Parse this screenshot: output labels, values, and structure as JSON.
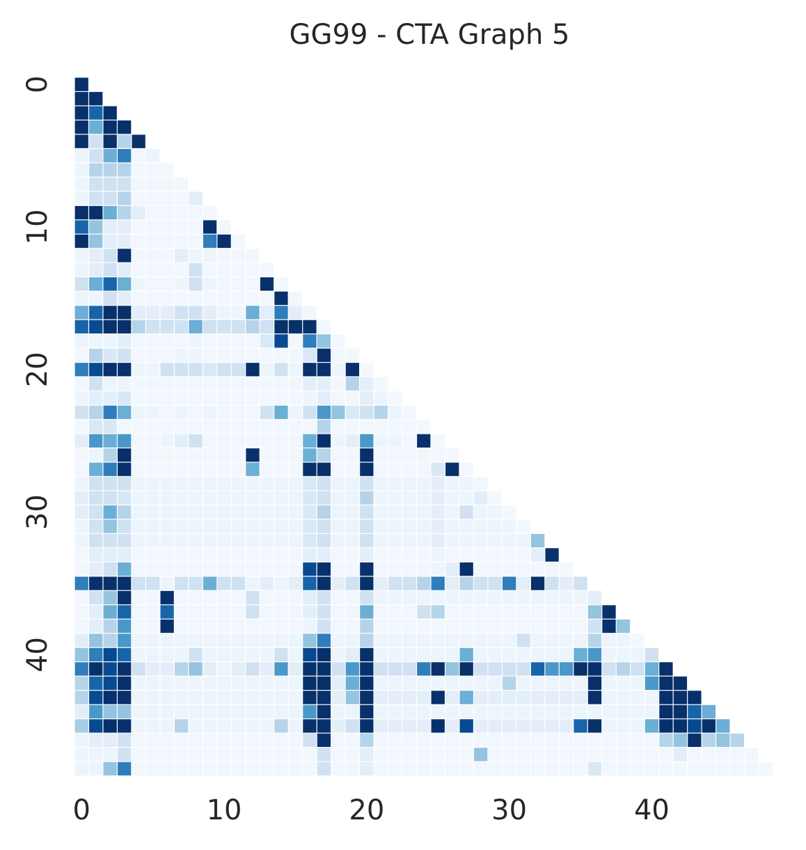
{
  "chart_data": {
    "type": "heatmap",
    "title": "GG99 - CTA Graph 5",
    "cmap": "Blues",
    "clim": [
      0,
      1
    ],
    "xticks": [
      0,
      10,
      20,
      30,
      40
    ],
    "yticks": [
      0,
      10,
      20,
      30,
      40
    ],
    "values": [
      [
        1
      ],
      [
        1,
        1
      ],
      [
        1,
        0.8,
        1
      ],
      [
        1,
        0.5,
        1,
        1
      ],
      [
        1,
        0.2,
        1,
        0.3,
        1
      ],
      [
        0.05,
        0.2,
        0.5,
        0.7,
        0.03,
        0.05
      ],
      [
        0.05,
        0.3,
        0.3,
        0.3,
        0.03,
        0.03,
        0.03
      ],
      [
        0.05,
        0.2,
        0.2,
        0.2,
        0.03,
        0.03,
        0.03,
        0.03
      ],
      [
        0.05,
        0.2,
        0.2,
        0.3,
        0.03,
        0.03,
        0.03,
        0.03,
        0.1
      ],
      [
        1,
        1,
        0.5,
        0.3,
        0.1,
        0.03,
        0.03,
        0.03,
        0.03,
        0.03
      ],
      [
        0.8,
        0.4,
        0.1,
        0.1,
        0.03,
        0.03,
        0.03,
        0.03,
        0.03,
        1,
        0.03
      ],
      [
        1,
        0.4,
        0.1,
        0.1,
        0.03,
        0.03,
        0.03,
        0.03,
        0.03,
        0.7,
        1,
        0.03
      ],
      [
        0.05,
        0.1,
        0.2,
        1,
        0.03,
        0.03,
        0.03,
        0.1,
        0.05,
        0.05,
        0.03,
        0.03,
        0.03
      ],
      [
        0.05,
        0.1,
        0.2,
        0.1,
        0.03,
        0.03,
        0.03,
        0.03,
        0.2,
        0.03,
        0.03,
        0.03,
        0.03,
        0.03
      ],
      [
        0.2,
        0.5,
        0.8,
        0.5,
        0.05,
        0.03,
        0.03,
        0.05,
        0.2,
        0.05,
        0.03,
        0.03,
        0.03,
        1,
        0.03
      ],
      [
        0.05,
        0.05,
        0.2,
        0.1,
        0.03,
        0.03,
        0.03,
        0.03,
        0.03,
        0.03,
        0.03,
        0.03,
        0.03,
        0.03,
        1,
        0.03
      ],
      [
        0.5,
        0.8,
        1,
        1,
        0.1,
        0.1,
        0.1,
        0.2,
        0.2,
        0.1,
        0.05,
        0.05,
        0.5,
        0.1,
        0.7,
        0.1,
        0.03
      ],
      [
        0.8,
        0.9,
        1,
        1,
        0.3,
        0.2,
        0.2,
        0.2,
        0.5,
        0.2,
        0.2,
        0.2,
        0.3,
        0.2,
        1,
        1,
        1,
        0.02
      ],
      [
        0.05,
        0.05,
        0.05,
        0.1,
        0.03,
        0.03,
        0.03,
        0.03,
        0.05,
        0.03,
        0.03,
        0.03,
        0.03,
        0.15,
        0.9,
        0.03,
        0.7,
        0.4,
        0.02
      ],
      [
        0.03,
        0.3,
        0.15,
        0.2,
        0.03,
        0.03,
        0.03,
        0.05,
        0.05,
        0.03,
        0.03,
        0.03,
        0.03,
        0.03,
        0.03,
        0.03,
        0.15,
        1,
        0.03,
        0.02
      ],
      [
        0.7,
        0.9,
        1,
        1,
        0.05,
        0.05,
        0.2,
        0.2,
        0.2,
        0.15,
        0.2,
        0.2,
        1,
        0.05,
        0.2,
        0.05,
        1,
        1,
        0.05,
        1,
        0.02
      ],
      [
        0.03,
        0.2,
        0.05,
        0.05,
        0.03,
        0.03,
        0.03,
        0.03,
        0.03,
        0.03,
        0.03,
        0.03,
        0.03,
        0.03,
        0.03,
        0.03,
        0.1,
        0.1,
        0.03,
        0.3,
        0.1,
        0.02
      ],
      [
        0.05,
        0.1,
        0.1,
        0.15,
        0.03,
        0.03,
        0.03,
        0.03,
        0.03,
        0.03,
        0.03,
        0.03,
        0.03,
        0.03,
        0.03,
        0.03,
        0.05,
        0.1,
        0.03,
        0.03,
        0.1,
        0.05,
        0.02
      ],
      [
        0.2,
        0.3,
        0.7,
        0.5,
        0.05,
        0.05,
        0.03,
        0.05,
        0.03,
        0.05,
        0.03,
        0.03,
        0.03,
        0.2,
        0.5,
        0.05,
        0.2,
        0.6,
        0.4,
        0.15,
        0.2,
        0.3,
        0.05,
        0.02
      ],
      [
        0.03,
        0.15,
        0.15,
        0.03,
        0.03,
        0.03,
        0.03,
        0.03,
        0.03,
        0.03,
        0.03,
        0.03,
        0.03,
        0.03,
        0.03,
        0.03,
        0.03,
        0.3,
        0.03,
        0.03,
        0.03,
        0.03,
        0.03,
        0.03,
        0.02
      ],
      [
        0.1,
        0.6,
        0.5,
        0.6,
        0.03,
        0.03,
        0.05,
        0.1,
        0.2,
        0.03,
        0.03,
        0.03,
        0.03,
        0.03,
        0.03,
        0.03,
        0.5,
        1,
        0.05,
        0.1,
        0.6,
        0.05,
        0.05,
        0.03,
        1,
        0.02
      ],
      [
        0.03,
        0.05,
        0.3,
        1,
        0.03,
        0.03,
        0.03,
        0.03,
        0.03,
        0.03,
        0.03,
        0.03,
        1,
        0.03,
        0.03,
        0.03,
        0.5,
        0.3,
        0.03,
        0.03,
        1,
        0.03,
        0.03,
        0.03,
        0.03,
        0.03,
        0.02
      ],
      [
        0.03,
        0.5,
        0.7,
        1,
        0.03,
        0.03,
        0.03,
        0.03,
        0.03,
        0.03,
        0.03,
        0.03,
        0.5,
        0.03,
        0.03,
        0.03,
        1,
        1,
        0.03,
        0.03,
        1,
        0.03,
        0.03,
        0.03,
        0.03,
        0.15,
        1,
        0.02
      ],
      [
        0.05,
        0.2,
        0.2,
        0.2,
        0.05,
        0.05,
        0.05,
        0.05,
        0.05,
        0.05,
        0.05,
        0.05,
        0.05,
        0.05,
        0.05,
        0.05,
        0.15,
        0.2,
        0.05,
        0.05,
        0.2,
        0.05,
        0.05,
        0.05,
        0.05,
        0.1,
        0.05,
        0.05,
        0.02
      ],
      [
        0.1,
        0.2,
        0.2,
        0.15,
        0.05,
        0.05,
        0.05,
        0.05,
        0.05,
        0.05,
        0.05,
        0.05,
        0.05,
        0.05,
        0.05,
        0.05,
        0.15,
        0.2,
        0.05,
        0.05,
        0.3,
        0.05,
        0.05,
        0.05,
        0.05,
        0.1,
        0.05,
        0.05,
        0.1,
        0.02
      ],
      [
        0.1,
        0.2,
        0.5,
        0.3,
        0.05,
        0.05,
        0.05,
        0.05,
        0.05,
        0.05,
        0.05,
        0.05,
        0.05,
        0.05,
        0.05,
        0.05,
        0.15,
        0.3,
        0.05,
        0.05,
        0.2,
        0.05,
        0.05,
        0.05,
        0.05,
        0.1,
        0.05,
        0.2,
        0.05,
        0.05,
        0.02
      ],
      [
        0.05,
        0.2,
        0.4,
        0.2,
        0.05,
        0.05,
        0.05,
        0.05,
        0.05,
        0.05,
        0.05,
        0.05,
        0.05,
        0.05,
        0.05,
        0.05,
        0.15,
        0.2,
        0.05,
        0.05,
        0.2,
        0.05,
        0.05,
        0.05,
        0.05,
        0.1,
        0.05,
        0.05,
        0.05,
        0.05,
        0.05,
        0.02
      ],
      [
        0.05,
        0.2,
        0.2,
        0.2,
        0.05,
        0.05,
        0.05,
        0.05,
        0.05,
        0.05,
        0.05,
        0.05,
        0.05,
        0.05,
        0.05,
        0.05,
        0.15,
        0.2,
        0.05,
        0.05,
        0.2,
        0.05,
        0.05,
        0.05,
        0.05,
        0.1,
        0.05,
        0.05,
        0.05,
        0.05,
        0.05,
        0.05,
        0.4
      ],
      [
        0.03,
        0.1,
        0.1,
        0.1,
        0.03,
        0.03,
        0.03,
        0.03,
        0.03,
        0.03,
        0.03,
        0.03,
        0.03,
        0.03,
        0.03,
        0.03,
        0.1,
        0.1,
        0.03,
        0.03,
        0.1,
        0.03,
        0.03,
        0.03,
        0.03,
        0.05,
        0.03,
        0.03,
        0.03,
        0.03,
        0.03,
        0.03,
        0.1,
        1
      ],
      [
        0.03,
        0.1,
        0.2,
        0.5,
        0.03,
        0.03,
        0.03,
        0.03,
        0.03,
        0.03,
        0.03,
        0.03,
        0.03,
        0.03,
        0.03,
        0.03,
        0.9,
        1,
        0.03,
        0.03,
        1,
        0.03,
        0.03,
        0.03,
        0.03,
        0.05,
        0.1,
        1,
        0.03,
        0.03,
        0.03,
        0.03,
        0.03,
        0.03,
        0.02
      ],
      [
        0.7,
        1,
        1,
        1,
        0.2,
        0.2,
        0.05,
        0.2,
        0.2,
        0.5,
        0.2,
        0.2,
        0.05,
        0.1,
        0.05,
        0.1,
        0.8,
        1,
        0.1,
        0.2,
        1,
        0.1,
        0.2,
        0.2,
        0.3,
        0.7,
        0.1,
        0.3,
        0.2,
        0.2,
        0.7,
        0.1,
        1,
        0.2,
        0.1,
        0.2
      ],
      [
        0.03,
        0.2,
        0.4,
        1,
        0.03,
        0.03,
        1,
        0.03,
        0.03,
        0.03,
        0.03,
        0.03,
        0.2,
        0.03,
        0.03,
        0.03,
        0.1,
        0.2,
        0.03,
        0.03,
        0.2,
        0.05,
        0.05,
        0.05,
        0.05,
        0.05,
        0.05,
        0.05,
        0.05,
        0.05,
        0.05,
        0.05,
        0.05,
        0.05,
        0.05,
        0.05,
        0.1
      ],
      [
        0.03,
        0.1,
        0.5,
        0.8,
        0.03,
        0.03,
        0.8,
        0.03,
        0.03,
        0.03,
        0.03,
        0.03,
        0.2,
        0.03,
        0.03,
        0.03,
        0.1,
        0.2,
        0.03,
        0.03,
        0.5,
        0.03,
        0.03,
        0.03,
        0.2,
        0.3,
        0.03,
        0.03,
        0.03,
        0.03,
        0.03,
        0.03,
        0.03,
        0.03,
        0.03,
        0.03,
        0.4,
        1
      ],
      [
        0.03,
        0.1,
        0.3,
        0.6,
        0.03,
        0.03,
        1,
        0.03,
        0.03,
        0.03,
        0.03,
        0.03,
        0.03,
        0.03,
        0.03,
        0.03,
        0.05,
        0.2,
        0.03,
        0.03,
        0.3,
        0.03,
        0.03,
        0.03,
        0.03,
        0.03,
        0.03,
        0.03,
        0.03,
        0.03,
        0.03,
        0.03,
        0.03,
        0.03,
        0.03,
        0.03,
        0.2,
        1,
        0.4
      ],
      [
        0.1,
        0.4,
        0.3,
        0.6,
        0.05,
        0.05,
        0.05,
        0.05,
        0.05,
        0.05,
        0.05,
        0.05,
        0.05,
        0.05,
        0.05,
        0.05,
        0.4,
        0.7,
        0.05,
        0.05,
        0.3,
        0.05,
        0.05,
        0.05,
        0.05,
        0.05,
        0.05,
        0.05,
        0.05,
        0.05,
        0.05,
        0.2,
        0.05,
        0.05,
        0.05,
        0.05,
        0.3,
        0.05,
        0.05,
        0.02
      ],
      [
        0.4,
        0.7,
        0.9,
        0.8,
        0.05,
        0.05,
        0.05,
        0.05,
        0.2,
        0.05,
        0.05,
        0.05,
        0.05,
        0.05,
        0.2,
        0.05,
        0.9,
        1,
        0.05,
        0.1,
        1,
        0.05,
        0.05,
        0.05,
        0.05,
        0.05,
        0.05,
        0.5,
        0.05,
        0.05,
        0.05,
        0.05,
        0.05,
        0.05,
        0.05,
        0.5,
        0.6,
        0.05,
        0.05,
        0.05,
        0.2
      ],
      [
        0.7,
        1,
        0.9,
        1,
        0.2,
        0.1,
        0.1,
        0.3,
        0.4,
        0.1,
        0.05,
        0.1,
        0.2,
        0.1,
        0.6,
        0.1,
        1,
        1,
        0.2,
        0.6,
        1,
        0.2,
        0.2,
        0.2,
        0.7,
        1,
        0.4,
        1,
        0.2,
        0.2,
        0.2,
        0.2,
        0.8,
        0.6,
        0.6,
        1,
        1,
        0.2,
        0.3,
        0.2,
        0.5,
        1
      ],
      [
        0.3,
        0.8,
        0.9,
        1,
        0.05,
        0.05,
        0.05,
        0.05,
        0.05,
        0.05,
        0.05,
        0.05,
        0.05,
        0.05,
        0.05,
        0.05,
        1,
        1,
        0.1,
        0.5,
        1,
        0.05,
        0.05,
        0.05,
        0.05,
        0.05,
        0.05,
        0.05,
        0.05,
        0.05,
        0.3,
        0.05,
        0.05,
        0.05,
        0.05,
        0.05,
        1,
        0.05,
        0.05,
        0.05,
        0.6,
        1,
        1
      ],
      [
        0.3,
        0.9,
        1,
        1,
        0.05,
        0.05,
        0.05,
        0.05,
        0.05,
        0.05,
        0.05,
        0.05,
        0.05,
        0.05,
        0.05,
        0.05,
        1,
        1,
        0.1,
        0.4,
        1,
        0.1,
        0.1,
        0.1,
        0.1,
        1,
        0.1,
        0.5,
        0.1,
        0.1,
        0.1,
        0.1,
        0.1,
        0.1,
        0.1,
        0.1,
        1,
        0.05,
        0.05,
        0.05,
        0.05,
        1,
        1,
        1
      ],
      [
        0.1,
        0.6,
        0.4,
        0.4,
        0.05,
        0.05,
        0.05,
        0.05,
        0.05,
        0.05,
        0.05,
        0.05,
        0.05,
        0.05,
        0.05,
        0.05,
        0.6,
        1,
        0.05,
        0.05,
        1,
        0.05,
        0.05,
        0.05,
        0.05,
        0.05,
        0.05,
        0.05,
        0.05,
        0.05,
        0.05,
        0.05,
        0.05,
        0.05,
        0.05,
        0.05,
        0.05,
        0.05,
        0.05,
        0.05,
        0.05,
        1,
        1,
        0.8,
        0.5
      ],
      [
        0.35,
        0.9,
        1,
        1,
        0.05,
        0.05,
        0.05,
        0.3,
        0.05,
        0.05,
        0.05,
        0.05,
        0.05,
        0.05,
        0.3,
        0.05,
        1,
        1,
        0.1,
        0.2,
        1,
        0.1,
        0.1,
        0.1,
        0.1,
        1,
        0.1,
        0.9,
        0.1,
        0.1,
        0.1,
        0.1,
        0.1,
        0.1,
        0.1,
        0.8,
        1,
        0.05,
        0.05,
        0.05,
        0.5,
        1,
        1,
        0.9,
        1,
        0.5
      ],
      [
        0.05,
        0.1,
        0.1,
        0.2,
        0.03,
        0.03,
        0.03,
        0.03,
        0.03,
        0.03,
        0.03,
        0.03,
        0.03,
        0.03,
        0.03,
        0.03,
        0.2,
        1,
        0.03,
        0.03,
        0.3,
        0.03,
        0.03,
        0.03,
        0.03,
        0.03,
        0.03,
        0.03,
        0.03,
        0.03,
        0.03,
        0.03,
        0.03,
        0.03,
        0.03,
        0.03,
        0.03,
        0.03,
        0.03,
        0.03,
        0.03,
        0.3,
        0.4,
        1,
        0.3,
        0.4,
        0.3
      ],
      [
        0.05,
        0.05,
        0.05,
        0.2,
        0.03,
        0.03,
        0.03,
        0.03,
        0.03,
        0.03,
        0.03,
        0.03,
        0.03,
        0.03,
        0.03,
        0.03,
        0.03,
        0.2,
        0.03,
        0.03,
        0.1,
        0.03,
        0.03,
        0.03,
        0.03,
        0.03,
        0.03,
        0.03,
        0.4,
        0.03,
        0.03,
        0.03,
        0.03,
        0.03,
        0.03,
        0.03,
        0.03,
        0.03,
        0.03,
        0.03,
        0.03,
        0.03,
        0.1,
        0.03,
        0.03,
        0.03,
        0.03,
        0.03
      ],
      [
        0.05,
        0.05,
        0.4,
        0.7,
        0.03,
        0.03,
        0.03,
        0.03,
        0.03,
        0.03,
        0.03,
        0.03,
        0.03,
        0.03,
        0.03,
        0.03,
        0.03,
        0.2,
        0.03,
        0.03,
        0.1,
        0.03,
        0.03,
        0.03,
        0.03,
        0.03,
        0.03,
        0.03,
        0.03,
        0.03,
        0.03,
        0.03,
        0.03,
        0.03,
        0.03,
        0.03,
        0.15,
        0.03,
        0.03,
        0.03,
        0.03,
        0.03,
        0.03,
        0.03,
        0.03,
        0.03,
        0.03,
        0.03,
        0.03
      ]
    ]
  }
}
